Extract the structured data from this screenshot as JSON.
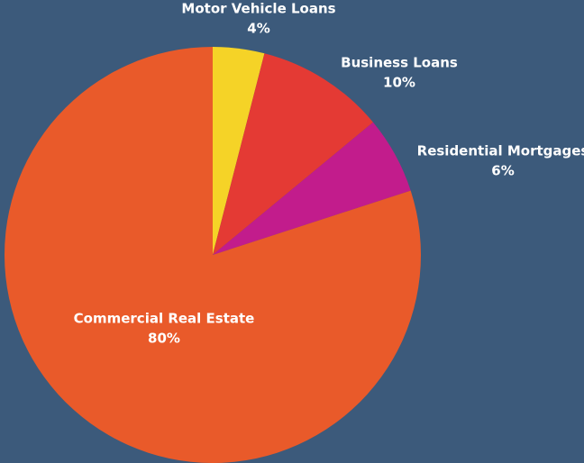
{
  "chart_data": {
    "type": "pie",
    "categories": [
      "Motor Vehicle Loans",
      "Business Loans",
      "Residential Mortgages",
      "Commercial Real Estate"
    ],
    "values": [
      4,
      10,
      6,
      80
    ],
    "value_labels": [
      "4%",
      "10%",
      "6%",
      "80%"
    ],
    "colors": [
      "#f5d327",
      "#e43a34",
      "#c21c8c",
      "#e95a2a"
    ]
  }
}
